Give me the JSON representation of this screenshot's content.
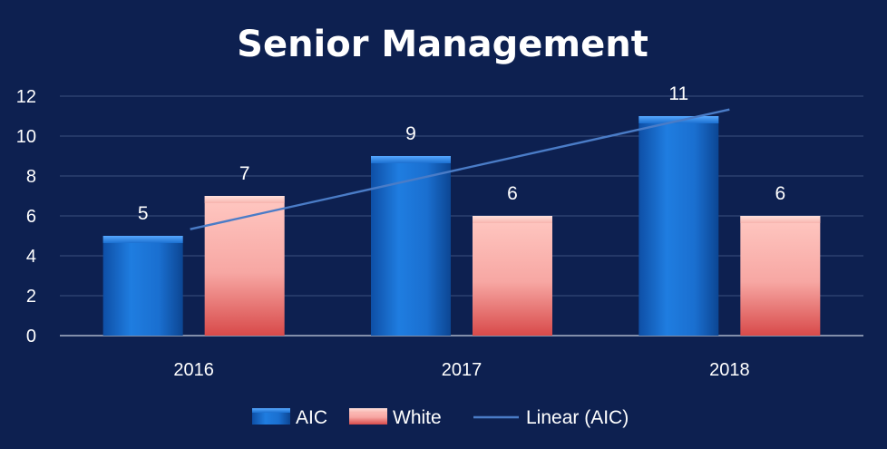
{
  "chart_data": {
    "type": "bar",
    "title": "Senior  Management",
    "categories": [
      "2016",
      "2017",
      "2018"
    ],
    "series": [
      {
        "name": "AIC",
        "values": [
          5,
          9,
          11
        ],
        "color": "#1a6fd0"
      },
      {
        "name": "White",
        "values": [
          7,
          6,
          6
        ],
        "color": "#f4a3a3"
      }
    ],
    "trendline": {
      "name": "Linear (AIC)",
      "of_series": "AIC",
      "type": "linear",
      "start": 5.333,
      "end": 11.333,
      "color": "#4a7cc7"
    },
    "y_ticks": [
      "0",
      "2",
      "4",
      "6",
      "8",
      "10",
      "12"
    ],
    "ylim": [
      0,
      12
    ],
    "grid": true,
    "legend": "bottom",
    "background": "#0d2050"
  }
}
